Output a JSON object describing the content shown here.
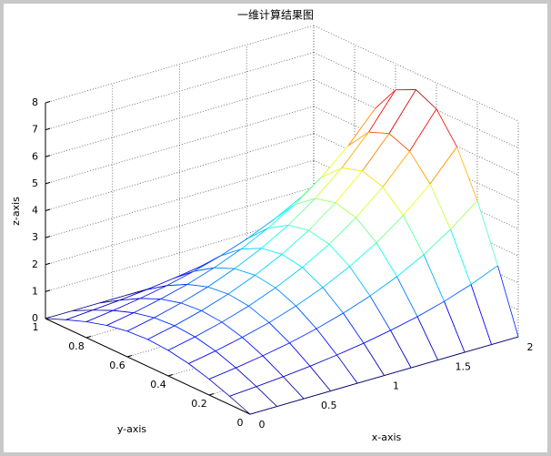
{
  "chart_data": {
    "type": "mesh3d",
    "title": "一维计算结果图",
    "xlabel": "x-axis",
    "ylabel": "y-axis",
    "zlabel": "z-axis",
    "x": [
      0,
      0.2,
      0.4,
      0.6,
      0.8,
      1,
      1.2,
      1.4,
      1.6,
      1.8,
      2
    ],
    "y": [
      0,
      0.1,
      0.2,
      0.3,
      0.4,
      0.5,
      0.6,
      0.7,
      0.8,
      0.9,
      1
    ],
    "z": [
      [
        0,
        0,
        0,
        0,
        0,
        0,
        0,
        0,
        0,
        0,
        0
      ],
      [
        0.31,
        0.38,
        0.46,
        0.56,
        0.69,
        0.84,
        1.03,
        1.25,
        1.53,
        1.87,
        2.28
      ],
      [
        0.59,
        0.72,
        0.88,
        1.07,
        1.31,
        1.6,
        1.95,
        2.38,
        2.91,
        3.56,
        4.34
      ],
      [
        0.81,
        0.99,
        1.21,
        1.47,
        1.8,
        2.2,
        2.69,
        3.28,
        4.01,
        4.89,
        5.98
      ],
      [
        0.95,
        1.16,
        1.42,
        1.73,
        2.12,
        2.59,
        3.16,
        3.86,
        4.71,
        5.75,
        7.03
      ],
      [
        1,
        1.22,
        1.49,
        1.82,
        2.23,
        2.72,
        3.32,
        4.06,
        4.95,
        6.05,
        7.39
      ],
      [
        0.95,
        1.16,
        1.42,
        1.73,
        2.12,
        2.59,
        3.16,
        3.86,
        4.71,
        5.75,
        7.03
      ],
      [
        0.81,
        0.99,
        1.21,
        1.47,
        1.8,
        2.2,
        2.69,
        3.28,
        4.01,
        4.89,
        5.98
      ],
      [
        0.59,
        0.72,
        0.88,
        1.07,
        1.31,
        1.6,
        1.95,
        2.38,
        2.91,
        3.56,
        4.34
      ],
      [
        0.31,
        0.38,
        0.46,
        0.56,
        0.69,
        0.84,
        1.03,
        1.25,
        1.53,
        1.87,
        2.28
      ],
      [
        0,
        0,
        0,
        0,
        0,
        0,
        0,
        0,
        0,
        0,
        0
      ]
    ],
    "xlim": [
      0,
      2
    ],
    "ylim": [
      0,
      1
    ],
    "zlim": [
      0,
      8
    ],
    "xticks": [
      0,
      0.5,
      1,
      1.5,
      2
    ],
    "yticks": [
      0,
      0.2,
      0.4,
      0.6,
      0.8,
      1
    ],
    "zticks": [
      0,
      1,
      2,
      3,
      4,
      5,
      6,
      7,
      8
    ],
    "colormap": "jet",
    "grid": true
  }
}
